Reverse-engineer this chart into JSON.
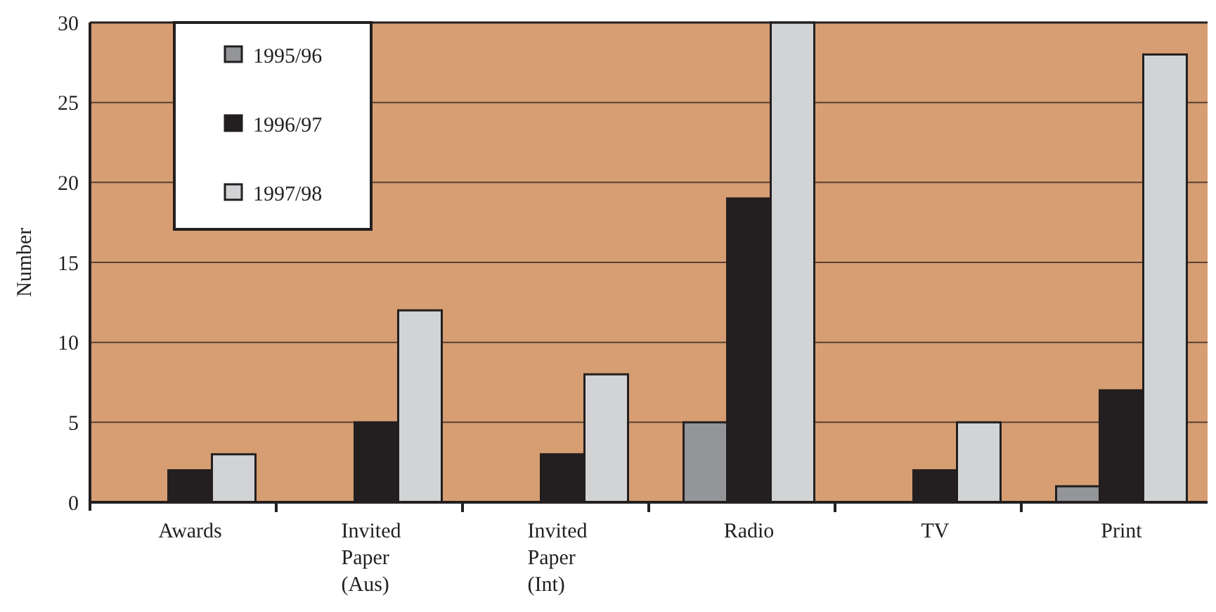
{
  "chart_data": {
    "type": "bar",
    "ylabel": "Number",
    "categories": [
      "Awards",
      "Invited Paper (Aus)",
      "Invited Paper (Int)",
      "Radio",
      "TV",
      "Print"
    ],
    "series": [
      {
        "name": "1995/96",
        "color": "#939598",
        "values": [
          0,
          0,
          0,
          5,
          0,
          1
        ]
      },
      {
        "name": "1996/97",
        "color": "#231f20",
        "values": [
          2,
          5,
          3,
          19,
          2,
          7
        ]
      },
      {
        "name": "1997/98",
        "color": "#d1d3d4",
        "values": [
          3,
          12,
          8,
          30,
          5,
          28
        ]
      }
    ],
    "ylim": [
      0,
      30
    ],
    "yticks": [
      0,
      5,
      10,
      15,
      20,
      25,
      30
    ],
    "grid": "y",
    "legend": "top left"
  }
}
